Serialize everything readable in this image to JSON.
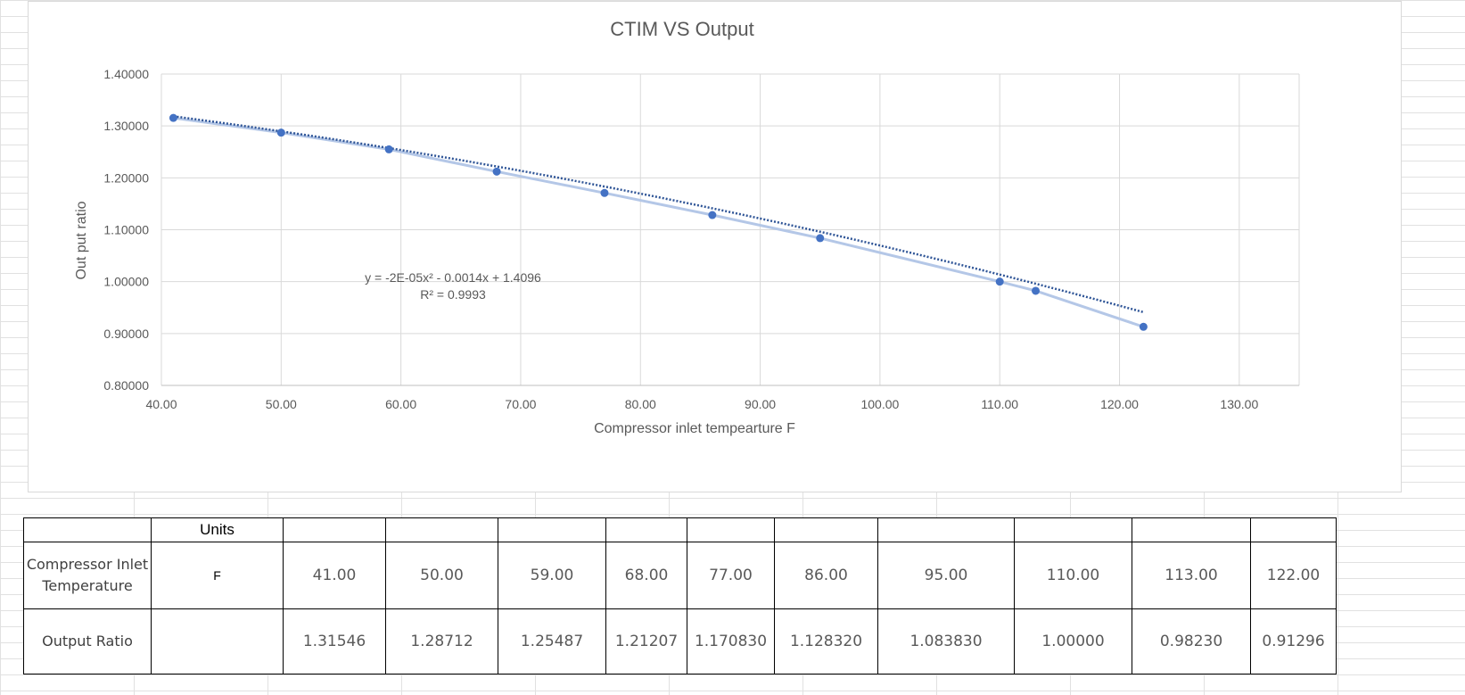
{
  "chart_data": {
    "type": "scatter",
    "title": "CTIM VS Output",
    "xlabel": "Compressor inlet tempearture F",
    "ylabel": "Out put ratio",
    "xlim": [
      40,
      135
    ],
    "ylim": [
      0.8,
      1.4
    ],
    "x_ticks": [
      40,
      50,
      60,
      70,
      80,
      90,
      100,
      110,
      120,
      130
    ],
    "x_tick_labels": [
      "40.00",
      "50.00",
      "60.00",
      "70.00",
      "80.00",
      "90.00",
      "100.00",
      "110.00",
      "120.00",
      "130.00"
    ],
    "y_ticks": [
      0.8,
      0.9,
      1.0,
      1.1,
      1.2,
      1.3,
      1.4
    ],
    "y_tick_labels": [
      "0.80000",
      "0.90000",
      "1.00000",
      "1.10000",
      "1.20000",
      "1.30000",
      "1.40000"
    ],
    "grid": true,
    "series": [
      {
        "x": [
          41,
          50,
          59,
          68,
          77,
          86,
          95,
          110,
          113,
          122
        ],
        "y": [
          1.31546,
          1.28712,
          1.25487,
          1.21207,
          1.17083,
          1.12832,
          1.08383,
          1.0,
          0.9823,
          0.91296
        ],
        "color": "#4472c4"
      }
    ],
    "trendline": {
      "type": "polynomial",
      "coefficients": [
        -2e-05,
        -0.0014,
        1.4096
      ],
      "equation": "y = -2E-05x² - 0.0014x + 1.4096",
      "r_squared": "R² = 0.9993",
      "color": "#2f5597",
      "style": "dotted"
    }
  },
  "table": {
    "units_header": "Units",
    "rows": [
      {
        "label": "Compressor Inlet Temperature",
        "units": "F",
        "values": [
          "41.00",
          "50.00",
          "59.00",
          "68.00",
          "77.00",
          "86.00",
          "95.00",
          "110.00",
          "113.00",
          "122.00"
        ]
      },
      {
        "label": "Output Ratio",
        "units": "",
        "values": [
          "1.31546",
          "1.28712",
          "1.25487",
          "1.21207",
          "1.170830",
          "1.128320",
          "1.083830",
          "1.00000",
          "0.98230",
          "0.91296"
        ]
      }
    ]
  }
}
